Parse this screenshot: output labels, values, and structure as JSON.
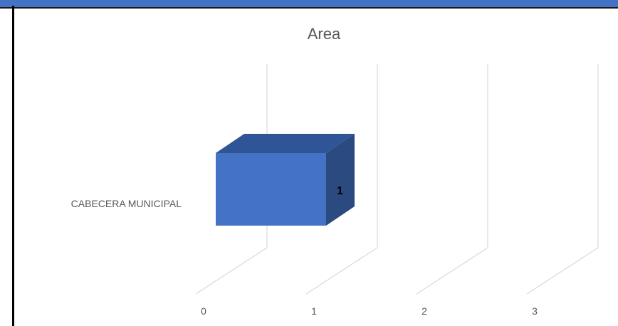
{
  "chart_data": {
    "type": "bar",
    "orientation": "horizontal",
    "style": "3d",
    "title": "Area",
    "xlabel": "",
    "ylabel": "",
    "categories": [
      "CABECERA MUNICIPAL"
    ],
    "series": [
      {
        "values": [
          1
        ]
      }
    ],
    "xlim": [
      0,
      3
    ],
    "x_ticks": [
      "0",
      "1",
      "2",
      "3"
    ],
    "data_labels": [
      "1"
    ],
    "grid": true,
    "legend": "none",
    "colors": {
      "bar_front": "#4472c4",
      "bar_top": "#2f5597",
      "bar_side": "#2b4a80",
      "gridline": "#d9d9d9",
      "text": "#595959",
      "header_bar": "#4472c4"
    }
  }
}
